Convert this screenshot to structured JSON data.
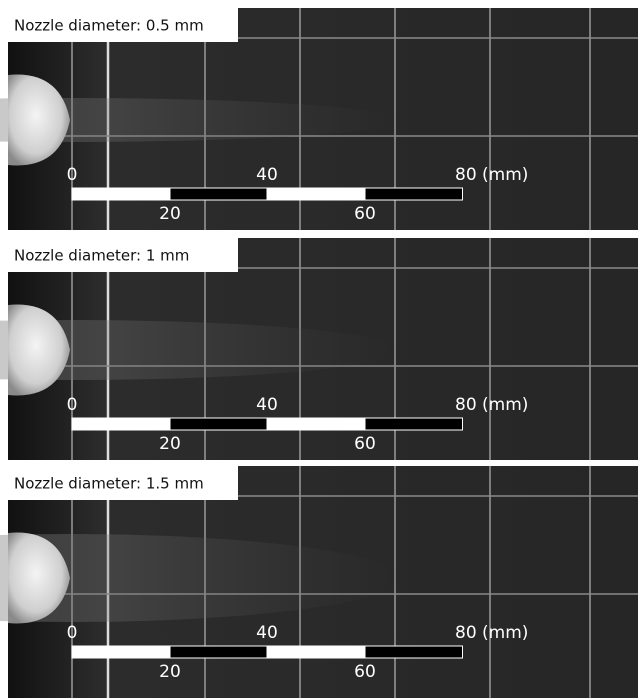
{
  "panels": [
    {
      "label": "Nozzle diameter: 0.5 mm",
      "scale": {
        "top": [
          "0",
          "40",
          "80 (mm)"
        ],
        "bottom": [
          "20",
          "60"
        ]
      }
    },
    {
      "label": "Nozzle diameter: 1 mm",
      "scale": {
        "top": [
          "0",
          "40",
          "80 (mm)"
        ],
        "bottom": [
          "20",
          "60"
        ]
      }
    },
    {
      "label": "Nozzle diameter: 1.5 mm",
      "scale": {
        "top": [
          "0",
          "40",
          "80 (mm)"
        ],
        "bottom": [
          "20",
          "60"
        ]
      }
    }
  ]
}
